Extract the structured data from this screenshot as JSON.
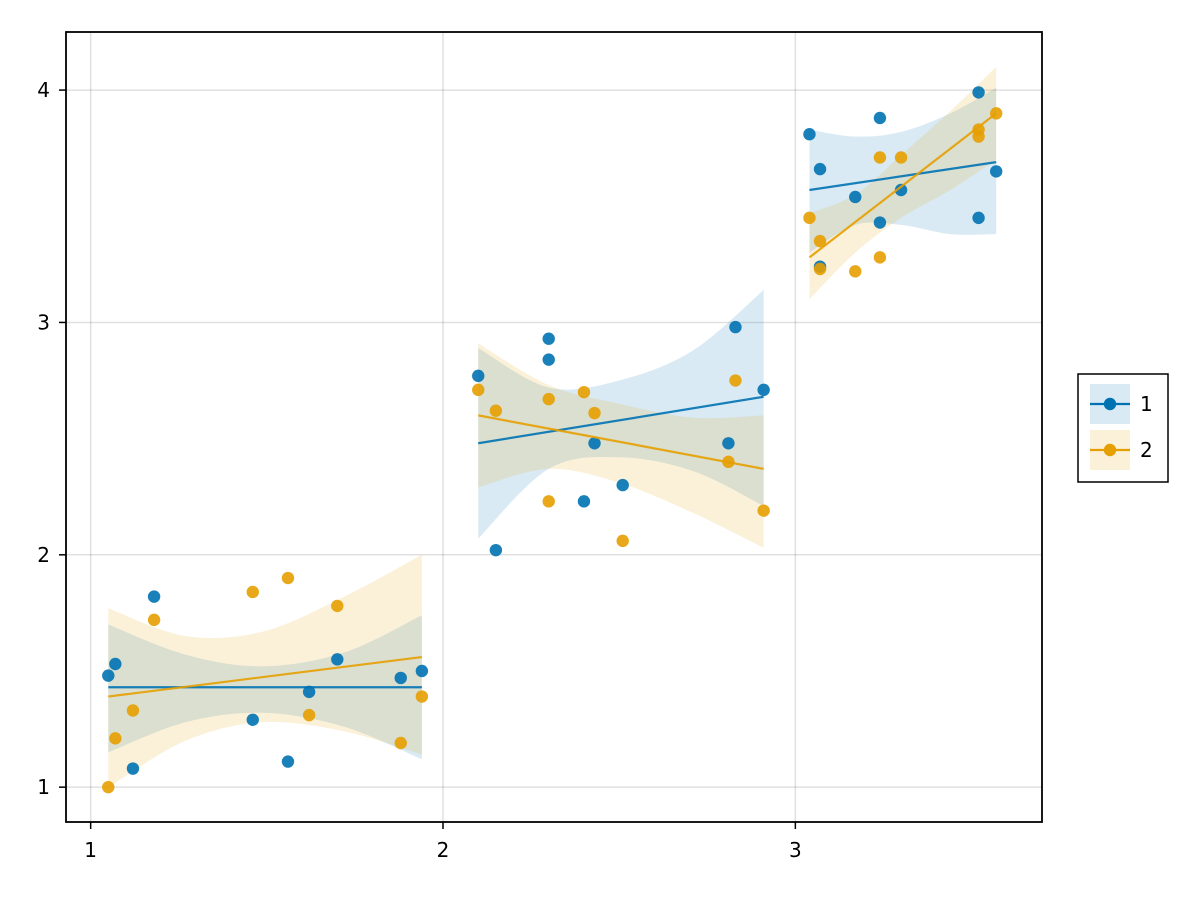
{
  "chart_data": {
    "type": "scatter",
    "title": "",
    "xlabel": "",
    "ylabel": "",
    "xlim": [
      0.93,
      3.7
    ],
    "ylim": [
      0.85,
      4.25
    ],
    "xticks": [
      1,
      2,
      3
    ],
    "yticks": [
      1,
      2,
      3,
      4
    ],
    "xtick_labels": [
      "1",
      "2",
      "3"
    ],
    "ytick_labels": [
      "1",
      "2",
      "3",
      "4"
    ],
    "grid": true,
    "legend_position": "right",
    "series": [
      {
        "name": "1",
        "color": "#0072b2",
        "points": [
          [
            1.05,
            1.48
          ],
          [
            1.07,
            1.53
          ],
          [
            1.12,
            1.08
          ],
          [
            1.18,
            1.82
          ],
          [
            1.46,
            1.29
          ],
          [
            1.56,
            1.11
          ],
          [
            1.62,
            1.41
          ],
          [
            1.7,
            1.55
          ],
          [
            1.88,
            1.47
          ],
          [
            1.94,
            1.5
          ],
          [
            2.1,
            2.77
          ],
          [
            2.15,
            2.02
          ],
          [
            2.3,
            2.93
          ],
          [
            2.3,
            2.84
          ],
          [
            2.4,
            2.23
          ],
          [
            2.43,
            2.48
          ],
          [
            2.51,
            2.3
          ],
          [
            2.81,
            2.48
          ],
          [
            2.83,
            2.98
          ],
          [
            2.91,
            2.71
          ],
          [
            3.04,
            3.81
          ],
          [
            3.07,
            3.66
          ],
          [
            3.07,
            3.24
          ],
          [
            3.17,
            3.54
          ],
          [
            3.24,
            3.88
          ],
          [
            3.24,
            3.43
          ],
          [
            3.3,
            3.57
          ],
          [
            3.52,
            3.45
          ],
          [
            3.52,
            3.99
          ],
          [
            3.57,
            3.65
          ]
        ],
        "fits": [
          {
            "x": [
              1.05,
              1.94
            ],
            "y": [
              1.43,
              1.43
            ],
            "band_x": [
              1.05,
              1.27,
              1.49,
              1.72,
              1.94
            ],
            "band_lower": [
              1.15,
              1.28,
              1.32,
              1.26,
              1.12
            ],
            "band_upper": [
              1.7,
              1.57,
              1.52,
              1.58,
              1.74
            ]
          },
          {
            "x": [
              2.1,
              2.91
            ],
            "y": [
              2.48,
              2.68
            ],
            "band_x": [
              2.1,
              2.3,
              2.5,
              2.71,
              2.91
            ],
            "band_lower": [
              2.07,
              2.37,
              2.42,
              2.36,
              2.21
            ],
            "band_upper": [
              2.89,
              2.72,
              2.75,
              2.88,
              3.14
            ]
          },
          {
            "x": [
              3.04,
              3.57
            ],
            "y": [
              3.57,
              3.69
            ],
            "band_x": [
              3.04,
              3.17,
              3.3,
              3.44,
              3.57
            ],
            "band_lower": [
              3.3,
              3.42,
              3.42,
              3.38,
              3.38
            ],
            "band_upper": [
              3.83,
              3.8,
              3.82,
              3.9,
              4.01
            ]
          }
        ]
      },
      {
        "name": "2",
        "color": "#e69f00",
        "points": [
          [
            1.05,
            1.0
          ],
          [
            1.07,
            1.21
          ],
          [
            1.12,
            1.33
          ],
          [
            1.18,
            1.72
          ],
          [
            1.46,
            1.84
          ],
          [
            1.56,
            1.9
          ],
          [
            1.62,
            1.31
          ],
          [
            1.7,
            1.78
          ],
          [
            1.88,
            1.19
          ],
          [
            1.94,
            1.39
          ],
          [
            2.1,
            2.71
          ],
          [
            2.15,
            2.62
          ],
          [
            2.3,
            2.67
          ],
          [
            2.3,
            2.23
          ],
          [
            2.4,
            2.7
          ],
          [
            2.43,
            2.61
          ],
          [
            2.51,
            2.06
          ],
          [
            2.81,
            2.4
          ],
          [
            2.83,
            2.75
          ],
          [
            2.91,
            2.19
          ],
          [
            3.04,
            3.45
          ],
          [
            3.07,
            3.35
          ],
          [
            3.07,
            3.23
          ],
          [
            3.17,
            3.22
          ],
          [
            3.24,
            3.71
          ],
          [
            3.24,
            3.28
          ],
          [
            3.3,
            3.71
          ],
          [
            3.52,
            3.8
          ],
          [
            3.52,
            3.83
          ],
          [
            3.57,
            3.9
          ]
        ],
        "fits": [
          {
            "x": [
              1.05,
              1.94
            ],
            "y": [
              1.39,
              1.56
            ],
            "band_x": [
              1.05,
              1.27,
              1.49,
              1.72,
              1.94
            ],
            "band_lower": [
              1.0,
              1.2,
              1.28,
              1.24,
              1.14
            ],
            "band_upper": [
              1.77,
              1.65,
              1.67,
              1.82,
              2.0
            ]
          },
          {
            "x": [
              2.1,
              2.91
            ],
            "y": [
              2.6,
              2.37
            ],
            "band_x": [
              2.1,
              2.3,
              2.5,
              2.71,
              2.91
            ],
            "band_lower": [
              2.29,
              2.37,
              2.31,
              2.18,
              2.03
            ],
            "band_upper": [
              2.91,
              2.73,
              2.65,
              2.59,
              2.6
            ]
          },
          {
            "x": [
              3.04,
              3.57
            ],
            "y": [
              3.28,
              3.9
            ],
            "band_x": [
              3.04,
              3.17,
              3.3,
              3.44,
              3.57
            ],
            "band_lower": [
              3.1,
              3.3,
              3.45,
              3.57,
              3.7
            ],
            "band_upper": [
              3.47,
              3.55,
              3.72,
              3.91,
              4.1
            ]
          }
        ]
      }
    ]
  }
}
